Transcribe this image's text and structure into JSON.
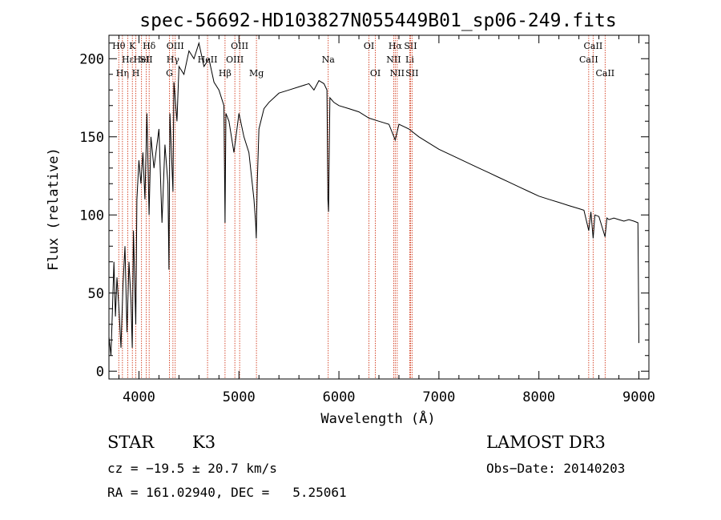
{
  "chart_data": {
    "type": "line",
    "title": "spec-56692-HD103827N055449B01_sp06-249.fits",
    "xlabel": "Wavelength (Å)",
    "ylabel": "Flux (relative)",
    "xlim": [
      3700,
      9100
    ],
    "ylim": [
      -5,
      215
    ],
    "xticks": [
      4000,
      5000,
      6000,
      7000,
      8000,
      9000
    ],
    "yticks": [
      0,
      50,
      100,
      150,
      200
    ],
    "grid": false,
    "line_color": "#000000",
    "marker_color": "#cc2200",
    "series": [
      {
        "x": [
          3700,
          3720,
          3735,
          3750,
          3765,
          3780,
          3800,
          3820,
          3840,
          3860,
          3880,
          3900,
          3920,
          3933,
          3945,
          3968,
          3980,
          4000,
          4020,
          4040,
          4060,
          4080,
          4101,
          4120,
          4150,
          4200,
          4230,
          4260,
          4290,
          4300,
          4310,
          4340,
          4350,
          4380,
          4400,
          4450,
          4500,
          4550,
          4600,
          4650,
          4700,
          4750,
          4800,
          4850,
          4861,
          4870,
          4900,
          4950,
          5000,
          5050,
          5100,
          5150,
          5167,
          5173,
          5183,
          5200,
          5250,
          5300,
          5400,
          5500,
          5600,
          5700,
          5750,
          5800,
          5850,
          5880,
          5890,
          5896,
          5910,
          5950,
          6000,
          6100,
          6200,
          6300,
          6400,
          6500,
          6563,
          6600,
          6700,
          6800,
          6900,
          7000,
          7100,
          7200,
          7300,
          7400,
          7500,
          7600,
          7700,
          7800,
          7900,
          8000,
          8100,
          8200,
          8300,
          8400,
          8450,
          8498,
          8520,
          8542,
          8560,
          8600,
          8662,
          8680,
          8700,
          8750,
          8800,
          8850,
          8900,
          8950,
          8990,
          9000
        ],
        "y": [
          22,
          10,
          40,
          70,
          35,
          60,
          40,
          15,
          55,
          80,
          25,
          70,
          45,
          15,
          90,
          30,
          110,
          135,
          120,
          140,
          110,
          165,
          100,
          150,
          130,
          155,
          95,
          145,
          120,
          65,
          165,
          115,
          185,
          160,
          195,
          190,
          205,
          200,
          210,
          195,
          200,
          185,
          180,
          170,
          95,
          165,
          160,
          140,
          165,
          150,
          140,
          110,
          95,
          85,
          120,
          155,
          168,
          172,
          178,
          180,
          182,
          184,
          180,
          186,
          184,
          180,
          110,
          102,
          175,
          172,
          170,
          168,
          166,
          162,
          160,
          158,
          148,
          158,
          155,
          150,
          146,
          142,
          139,
          136,
          133,
          130,
          127,
          124,
          121,
          118,
          115,
          112,
          110,
          108,
          106,
          104,
          103,
          90,
          102,
          85,
          100,
          99,
          86,
          98,
          97,
          98,
          97,
          96,
          97,
          96,
          95,
          18
        ]
      }
    ],
    "line_markers": [
      {
        "x": 3798,
        "label": "Hθ",
        "row": 1
      },
      {
        "x": 3835,
        "label": "Hη",
        "row": 3
      },
      {
        "x": 3889,
        "label": "Hε",
        "row": 2
      },
      {
        "x": 3934,
        "label": "K",
        "row": 1
      },
      {
        "x": 3969,
        "label": "H",
        "row": 3
      },
      {
        "x": 4026,
        "label": "HeI",
        "row": 2
      },
      {
        "x": 4072,
        "label": "SII",
        "row": 2
      },
      {
        "x": 4102,
        "label": "Hδ",
        "row": 1
      },
      {
        "x": 4305,
        "label": "G",
        "row": 3
      },
      {
        "x": 4340,
        "label": "Hγ",
        "row": 2
      },
      {
        "x": 4363,
        "label": "OIII",
        "row": 1
      },
      {
        "x": 4686,
        "label": "HeII",
        "row": 2
      },
      {
        "x": 4861,
        "label": "Hβ",
        "row": 3
      },
      {
        "x": 4959,
        "label": "OIII",
        "row": 2
      },
      {
        "x": 5007,
        "label": "OIII",
        "row": 1
      },
      {
        "x": 5175,
        "label": "Mg",
        "row": 3
      },
      {
        "x": 5893,
        "label": "Na",
        "row": 2
      },
      {
        "x": 6300,
        "label": "OI",
        "row": 1
      },
      {
        "x": 6364,
        "label": "OI",
        "row": 3
      },
      {
        "x": 6548,
        "label": "NII",
        "row": 2
      },
      {
        "x": 6563,
        "label": "Hα",
        "row": 1
      },
      {
        "x": 6583,
        "label": "NII",
        "row": 3
      },
      {
        "x": 6708,
        "label": "Li",
        "row": 2
      },
      {
        "x": 6716,
        "label": "SII",
        "row": 1
      },
      {
        "x": 6731,
        "label": "SII",
        "row": 3
      },
      {
        "x": 8498,
        "label": "CaII",
        "row": 2
      },
      {
        "x": 8542,
        "label": "CaII",
        "row": 1
      },
      {
        "x": 8662,
        "label": "CaII",
        "row": 3
      }
    ]
  },
  "info": {
    "object_class": "STAR",
    "subclass": "K3",
    "survey": "LAMOST DR3",
    "redshift": "cz = −19.5 ± 20.7 km/s",
    "obs_date": "Obs−Date: 20140203",
    "coords": "RA = 161.02940, DEC =   5.25061"
  }
}
